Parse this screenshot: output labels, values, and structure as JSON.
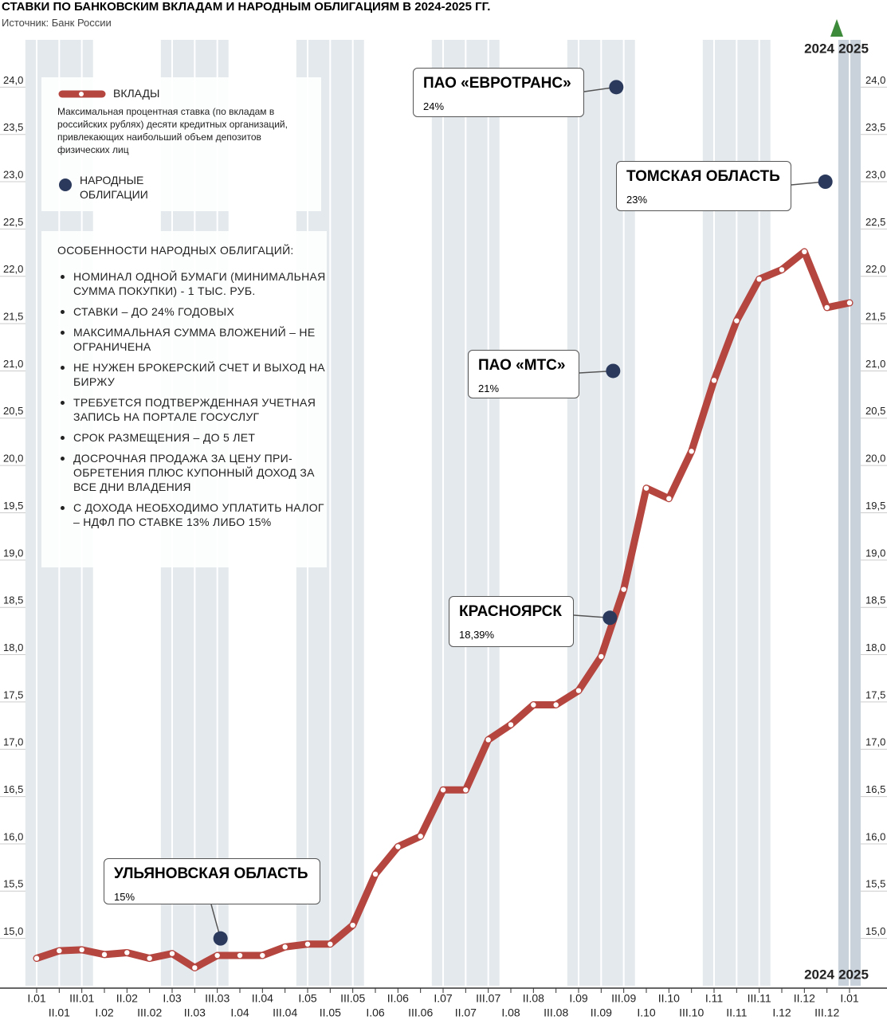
{
  "chart_data": {
    "type": "line",
    "title": "СТАВКИ ПО БАНКОВСКИМ ВКЛАДАМ И НАРОДНЫМ ОБЛИГАЦИЯМ В 2024-2025 ГГ.",
    "source": "Источник: Банк России",
    "categories": [
      "I.01",
      "II.01",
      "III.01",
      "I.02",
      "II.02",
      "III.02",
      "I.03",
      "II.03",
      "III.03",
      "I.04",
      "II.04",
      "III.04",
      "I.05",
      "II.05",
      "III.05",
      "I.06",
      "II.06",
      "III.06",
      "I.07",
      "II.07",
      "III.07",
      "I.08",
      "II.08",
      "III.08",
      "I.09",
      "II.09",
      "III.09",
      "I.10",
      "II.10",
      "III.10",
      "I.11",
      "II.11",
      "III.11",
      "I.12",
      "II.12",
      "III.12",
      "I.01"
    ],
    "series": [
      {
        "name": "ВКЛАДЫ",
        "description": "Максимальная процентная ставка (по вкладам в российских рублях) десяти кредитных организаций, привлекающих наибольший объем депозитов физических лиц",
        "color": "#b5453f",
        "values": [
          14.79,
          14.87,
          14.88,
          14.83,
          14.85,
          14.79,
          14.84,
          14.69,
          14.82,
          14.82,
          14.82,
          14.91,
          14.94,
          14.94,
          15.14,
          15.68,
          15.97,
          16.08,
          16.57,
          16.57,
          17.1,
          17.26,
          17.47,
          17.47,
          17.62,
          17.98,
          18.69,
          19.76,
          19.65,
          20.15,
          20.9,
          21.53,
          21.97,
          22.07,
          22.26,
          21.67,
          21.72
        ]
      }
    ],
    "bonds": {
      "name": "НАРОДНЫЕ ОБЛИГАЦИИ",
      "color": "#2b3a5c",
      "points": [
        {
          "label": "УЛЬЯНОВСКАЯ ОБЛАСТЬ",
          "category": "III.03",
          "value": 15,
          "value_label": "15%"
        },
        {
          "label": "КРАСНОЯРСК",
          "category": "II.09",
          "value": 18.39,
          "value_label": "18,39%"
        },
        {
          "label": "ПАО «МТС»",
          "category": "II.09",
          "value": 21,
          "value_label": "21%"
        },
        {
          "label": "ПАО «ЕВРОТРАНС»",
          "category": "II.09",
          "value": 24,
          "value_label": "24%"
        },
        {
          "label": "ТОМСКАЯ ОБЛАСТЬ",
          "category": "III.12",
          "value": 23,
          "value_label": "23%"
        }
      ]
    },
    "features": {
      "title": "ОСОБЕННОСТИ НАРОДНЫХ ОБЛИГАЦИЙ:",
      "items": [
        "НОМИНАЛ ОДНОЙ БУМАГИ (МИНИМАЛЬНАЯ СУММА ПОКУПКИ) - 1 ТЫС. РУБ.",
        "СТАВКИ – ДО 24% ГОДОВЫХ",
        "МАКСИМАЛЬНАЯ СУММА ВЛОЖЕНИЙ – НЕ ОГРАНИЧЕНА",
        "НЕ НУЖЕН БРОКЕРСКИЙ СЧЕТ И ВЫХОД НА БИРЖУ",
        "ТРЕБУЕТСЯ ПОДТВЕРЖДЕННАЯ УЧЕТНАЯ ЗАПИСЬ НА ПОРТАЛЕ ГОСУСЛУГ",
        "СРОК РАЗМЕЩЕНИЯ – ДО 5 ЛЕТ",
        "ДОСРОЧНАЯ ПРОДАЖА ЗА ЦЕНУ ПРИ-ОБРЕТЕНИЯ ПЛЮС КУПОННЫЙ ДОХОД ЗА ВСЕ ДНИ ВЛАДЕНИЯ",
        "С ДОХОДА НЕОБХОДИМО УПЛАТИТЬ НАЛОГ – НДФЛ ПО СТАВКЕ 13% ЛИБО 15%"
      ]
    },
    "year_labels": [
      "2024",
      "2025"
    ],
    "ylim": [
      14.5,
      24.5
    ],
    "yticks": [
      {
        "value": 15,
        "label": "15,0"
      },
      {
        "value": 15.5,
        "label": "15,5"
      },
      {
        "value": 16,
        "label": "16,0"
      },
      {
        "value": 16.5,
        "label": "16,5"
      },
      {
        "value": 17,
        "label": "17,0"
      },
      {
        "value": 17.5,
        "label": "17,5"
      },
      {
        "value": 18,
        "label": "18,0"
      },
      {
        "value": 18.5,
        "label": "18,5"
      },
      {
        "value": 19,
        "label": "19,0"
      },
      {
        "value": 19.5,
        "label": "19,5"
      },
      {
        "value": 20,
        "label": "20,0"
      },
      {
        "value": 20.5,
        "label": "20,5"
      },
      {
        "value": 21,
        "label": "21,0"
      },
      {
        "value": 21.5,
        "label": "21,5"
      },
      {
        "value": 22,
        "label": "22,0"
      },
      {
        "value": 22.5,
        "label": "22,5"
      },
      {
        "value": 23,
        "label": "23,0"
      },
      {
        "value": 23.5,
        "label": "23,5"
      },
      {
        "value": 24,
        "label": "24,0"
      }
    ]
  }
}
